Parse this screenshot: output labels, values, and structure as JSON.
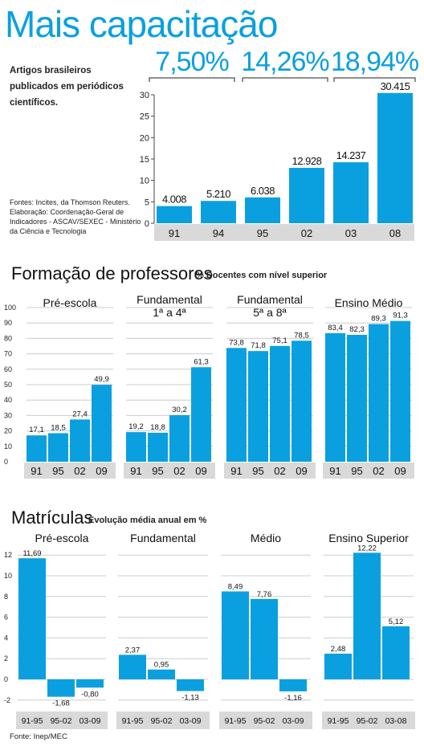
{
  "page": {
    "title": "Mais capacitação",
    "colors": {
      "accent": "#0aa0e0",
      "bar": "#0aa0e0",
      "axis_band": "#d9d9d9",
      "grid": "#cccccc"
    }
  },
  "chart_data": [
    {
      "id": "artigos",
      "type": "bar",
      "title": "Mais capacitação",
      "description": "Artigos brasileiros publicados em periódicos científicos.",
      "source": "Fontes: Incites, da Thomson Reuters. Elaboração: Coordenação-Geral de Indicadores - ASCAV/SEXEC - Ministério da Ciência e Tecnologia",
      "categories": [
        "91",
        "94",
        "95",
        "02",
        "03",
        "08"
      ],
      "values": [
        4008,
        5210,
        6038,
        12928,
        14237,
        30415
      ],
      "value_labels": [
        "4.008",
        "5.210",
        "6.038",
        "12.928",
        "14.237",
        "30.415"
      ],
      "ylim": [
        0,
        30
      ],
      "yticks": [
        0,
        5,
        10,
        15,
        20,
        25,
        30
      ],
      "annotations": [
        {
          "text": "7,50%",
          "from": "91",
          "to": "95"
        },
        {
          "text": "14,26%",
          "from": "95",
          "to": "03"
        },
        {
          "text": "18,94%",
          "from": "03",
          "to": "08"
        }
      ],
      "grid": false
    },
    {
      "id": "formacao",
      "type": "bar",
      "title": "Formação de professores",
      "subtitle": "% Docentes com nível superior",
      "ylim": [
        0,
        100
      ],
      "yticks": [
        0,
        10,
        20,
        30,
        40,
        50,
        60,
        70,
        80,
        90,
        100
      ],
      "grid": true,
      "categories": [
        "91",
        "95",
        "02",
        "09"
      ],
      "panels": [
        {
          "name": "Pré-escola",
          "values": [
            17.1,
            18.5,
            27.4,
            49.9
          ],
          "value_labels": [
            "17,1",
            "18,5",
            "27,4",
            "49,9"
          ]
        },
        {
          "name": "Fundamental\n1ª a 4ª",
          "values": [
            19.2,
            18.8,
            30.2,
            61.3
          ],
          "value_labels": [
            "19,2",
            "18,8",
            "30,2",
            "61,3"
          ]
        },
        {
          "name": "Fundamental\n5ª a 8ª",
          "values": [
            73.8,
            71.8,
            75.1,
            78.5
          ],
          "value_labels": [
            "73,8",
            "71,8",
            "75,1",
            "78,5"
          ]
        },
        {
          "name": "Ensino Médio",
          "values": [
            83.4,
            82.3,
            89.3,
            91.3
          ],
          "value_labels": [
            "83,4",
            "82,3",
            "89,3",
            "91,3"
          ]
        }
      ]
    },
    {
      "id": "matriculas",
      "type": "bar",
      "title": "Matrículas",
      "subtitle": "Evolução média anual em %",
      "source": "Fonte: Inep/MEC",
      "ylim": [
        -2,
        12
      ],
      "yticks": [
        -2,
        0,
        2,
        4,
        6,
        8,
        10,
        12
      ],
      "grid": true,
      "panels": [
        {
          "name": "Pré-escola",
          "categories": [
            "91-95",
            "95-02",
            "03-09"
          ],
          "values": [
            11.69,
            -1.68,
            -0.8
          ],
          "value_labels": [
            "11,69",
            "-1,68",
            "-0,80"
          ]
        },
        {
          "name": "Fundamental",
          "categories": [
            "91-95",
            "95-02",
            "03-09"
          ],
          "values": [
            2.37,
            0.95,
            -1.13
          ],
          "value_labels": [
            "2,37",
            "0,95",
            "-1,13"
          ]
        },
        {
          "name": "Médio",
          "categories": [
            "91-95",
            "95-02",
            "03-09"
          ],
          "values": [
            8.49,
            7.76,
            -1.16
          ],
          "value_labels": [
            "8,49",
            "7,76",
            "-1,16"
          ]
        },
        {
          "name": "Ensino Superior",
          "categories": [
            "91-95",
            "95-02",
            "03-08"
          ],
          "values": [
            2.48,
            12.22,
            5.12
          ],
          "value_labels": [
            "2,48",
            "12,22",
            "5,12"
          ]
        }
      ]
    }
  ]
}
